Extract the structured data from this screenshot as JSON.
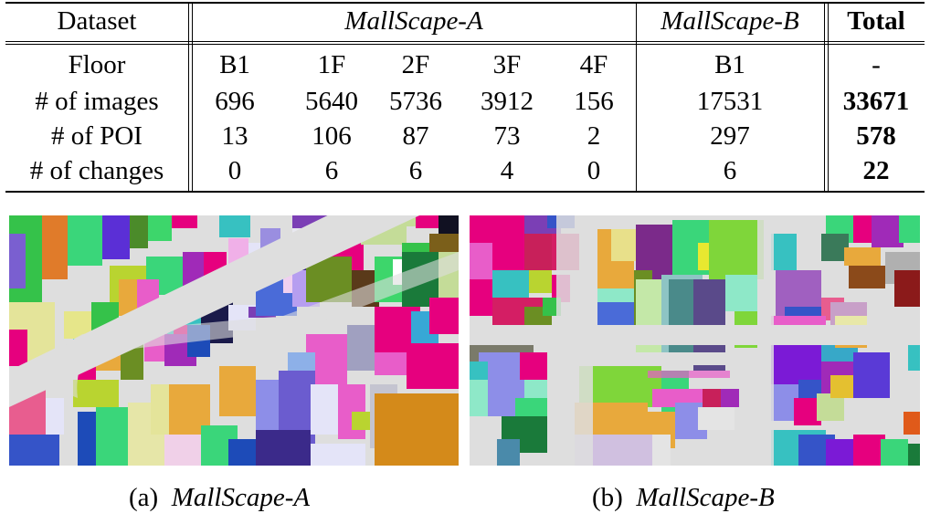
{
  "table": {
    "header": {
      "dataset": "Dataset",
      "mallA": "MallScape-A",
      "mallB": "MallScape-B",
      "total": "Total"
    },
    "floor_row": {
      "label": "Floor",
      "a": [
        "B1",
        "1F",
        "2F",
        "3F",
        "4F"
      ],
      "b": "B1",
      "total": "-"
    },
    "rows": [
      {
        "label": "# of images",
        "a": [
          "696",
          "5640",
          "5736",
          "3912",
          "156"
        ],
        "b": "17531",
        "total": "33671"
      },
      {
        "label": "# of POI",
        "a": [
          "13",
          "106",
          "87",
          "73",
          "2"
        ],
        "b": "297",
        "total": "578"
      },
      {
        "label": "# of changes",
        "a": [
          "0",
          "6",
          "6",
          "4",
          "0"
        ],
        "b": "6",
        "total": "22"
      }
    ]
  },
  "captions": {
    "a": {
      "tag": "(a)",
      "name": "MallScape-A"
    },
    "b": {
      "tag": "(b)",
      "name": "MallScape-B"
    }
  },
  "map_colors": {
    "background": "#dedede",
    "corridor": "#dedede",
    "palette": [
      "#e6007e",
      "#7b3fb5",
      "#31d66b",
      "#b9d430",
      "#3554c8",
      "#e8a93c",
      "#8d8ee8",
      "#6b8e23",
      "#e85dc9",
      "#37c1c1",
      "#c4dc98",
      "#d41e64"
    ]
  }
}
